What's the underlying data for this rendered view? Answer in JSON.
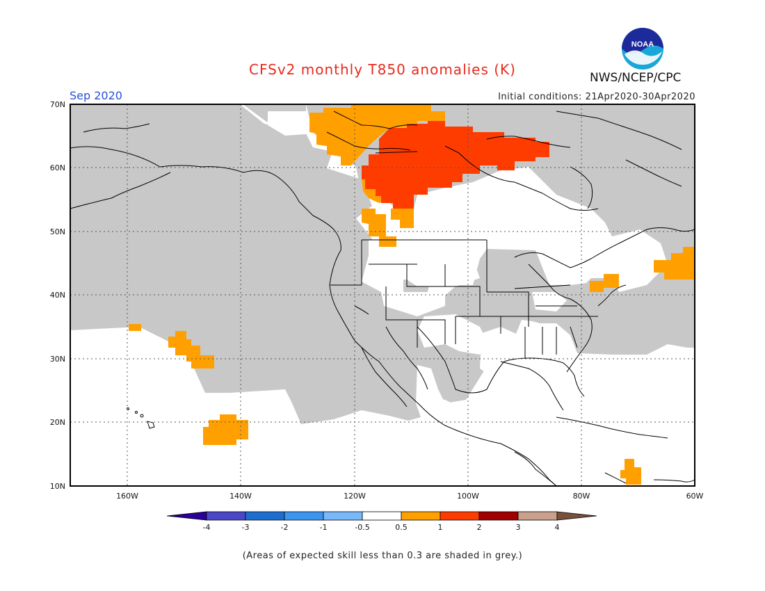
{
  "header": {
    "title": "CFSv2 monthly T850 anomalies (K)",
    "month": "Sep 2020",
    "initial_conditions": "Initial conditions: 21Apr2020-30Apr2020",
    "agency": "NWS/NCEP/CPC",
    "logo_text": "NOAA"
  },
  "map": {
    "lon_range": [
      -170,
      -60
    ],
    "lat_range": [
      10,
      70
    ],
    "lat_labels": [
      "70N",
      "60N",
      "50N",
      "40N",
      "30N",
      "20N",
      "10N"
    ],
    "lon_labels": [
      "160W",
      "140W",
      "120W",
      "100W",
      "80W",
      "60W"
    ],
    "colors": {
      "low_skill_grey": "#c8c8c8",
      "anom_0_5_to_1": "#ffa000",
      "anom_1_to_2": "#ff3c00",
      "land_outline": "#000000"
    }
  },
  "colorbar": {
    "labels": [
      "-4",
      "-3",
      "-2",
      "-1",
      "-0.5",
      "0.5",
      "1",
      "2",
      "3",
      "4"
    ],
    "colors": [
      "#2a009a",
      "#4b48c8",
      "#1e6ed2",
      "#3c96f0",
      "#78b9fa",
      "#ffffff",
      "#ffa000",
      "#ff3c00",
      "#a00000",
      "#c8a08c",
      "#78503c"
    ]
  },
  "footer": {
    "note": "(Areas of expected skill less than 0.3 are shaded in grey.)"
  }
}
